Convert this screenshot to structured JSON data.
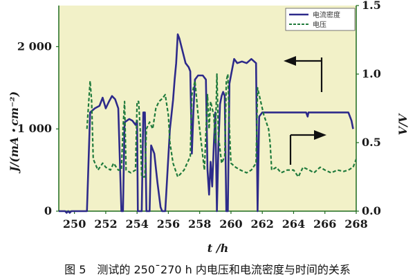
{
  "chart_data": {
    "type": "line",
    "caption": "图 5　测试的 250¯270 h 内电压和电流密度与时间的关系",
    "xlabel": "t /h",
    "ylabel_left": "J/(mA・cm⁻²)",
    "ylabel_right": "V/V",
    "xlim": [
      249,
      268
    ],
    "ylim_left": [
      0,
      2500
    ],
    "ylim_right": [
      0,
      1.5
    ],
    "x_ticks": [
      "250",
      "252",
      "254",
      "256",
      "258",
      "260",
      "262",
      "264",
      "266",
      "268"
    ],
    "y_left_ticks": [
      "0",
      "1 000",
      "2 000"
    ],
    "y_right_ticks": [
      "0.0",
      "0.5",
      "1.0",
      "1.5"
    ],
    "plot_background": "#f2f1c8",
    "grid": false,
    "legend_position": "top-right",
    "series": [
      {
        "name": "电流密度",
        "axis": "left",
        "color": "#2d2a8a",
        "style": "solid",
        "points": [
          [
            249.0,
            0
          ],
          [
            249.4,
            0
          ],
          [
            249.5,
            -20
          ],
          [
            249.6,
            0
          ],
          [
            249.7,
            -20
          ],
          [
            249.8,
            0
          ],
          [
            250.8,
            0
          ],
          [
            251.0,
            1200
          ],
          [
            251.3,
            1250
          ],
          [
            251.6,
            1280
          ],
          [
            251.8,
            1380
          ],
          [
            252.0,
            1250
          ],
          [
            252.2,
            1330
          ],
          [
            252.4,
            1400
          ],
          [
            252.6,
            1360
          ],
          [
            252.8,
            1250
          ],
          [
            253.0,
            0
          ],
          [
            253.1,
            0
          ],
          [
            253.2,
            1080
          ],
          [
            253.5,
            1120
          ],
          [
            253.7,
            1100
          ],
          [
            253.9,
            1050
          ],
          [
            254.0,
            1100
          ],
          [
            254.05,
            0
          ],
          [
            254.15,
            0
          ],
          [
            254.3,
            0
          ],
          [
            254.4,
            1200
          ],
          [
            254.5,
            1200
          ],
          [
            254.6,
            0
          ],
          [
            254.8,
            0
          ],
          [
            254.9,
            800
          ],
          [
            255.1,
            700
          ],
          [
            255.3,
            350
          ],
          [
            255.5,
            50
          ],
          [
            255.6,
            0
          ],
          [
            255.8,
            0
          ],
          [
            256.1,
            1000
          ],
          [
            256.3,
            1350
          ],
          [
            256.4,
            1600
          ],
          [
            256.5,
            1800
          ],
          [
            256.6,
            2150
          ],
          [
            256.7,
            2100
          ],
          [
            256.9,
            1950
          ],
          [
            257.1,
            1800
          ],
          [
            257.3,
            1750
          ],
          [
            257.4,
            1700
          ],
          [
            257.5,
            700
          ],
          [
            257.6,
            1200
          ],
          [
            257.7,
            1600
          ],
          [
            257.9,
            1650
          ],
          [
            258.2,
            1650
          ],
          [
            258.4,
            1600
          ],
          [
            258.5,
            500
          ],
          [
            258.6,
            200
          ],
          [
            258.7,
            600
          ],
          [
            258.8,
            300
          ],
          [
            258.9,
            800
          ],
          [
            259.0,
            1200
          ],
          [
            259.1,
            0
          ],
          [
            259.2,
            800
          ],
          [
            259.3,
            1300
          ],
          [
            259.4,
            1400
          ],
          [
            259.5,
            1450
          ],
          [
            259.6,
            1400
          ],
          [
            259.7,
            0
          ],
          [
            259.8,
            0
          ],
          [
            259.9,
            1550
          ],
          [
            260.0,
            1650
          ],
          [
            260.1,
            1750
          ],
          [
            260.2,
            1850
          ],
          [
            260.4,
            1800
          ],
          [
            260.7,
            1820
          ],
          [
            261.0,
            1800
          ],
          [
            261.3,
            1850
          ],
          [
            261.6,
            1800
          ],
          [
            261.7,
            0
          ],
          [
            261.8,
            1150
          ],
          [
            262.0,
            1200
          ],
          [
            262.5,
            1200
          ],
          [
            263.0,
            1200
          ],
          [
            263.5,
            1200
          ],
          [
            264.0,
            1200
          ],
          [
            264.5,
            1200
          ],
          [
            264.8,
            1200
          ],
          [
            264.9,
            1150
          ],
          [
            264.95,
            1200
          ],
          [
            265.5,
            1200
          ],
          [
            266.0,
            1200
          ],
          [
            266.5,
            1200
          ],
          [
            267.0,
            1200
          ],
          [
            267.5,
            1200
          ],
          [
            267.7,
            1100
          ],
          [
            267.8,
            1000
          ]
        ]
      },
      {
        "name": "电压",
        "axis": "right",
        "color": "#1f7a3c",
        "style": "dashed",
        "points": [
          [
            250.8,
            0.6
          ],
          [
            251.0,
            0.95
          ],
          [
            251.1,
            0.8
          ],
          [
            251.2,
            0.38
          ],
          [
            251.5,
            0.3
          ],
          [
            251.8,
            0.35
          ],
          [
            252.0,
            0.32
          ],
          [
            252.3,
            0.3
          ],
          [
            252.5,
            0.35
          ],
          [
            252.8,
            0.3
          ],
          [
            253.0,
            0.3
          ],
          [
            253.1,
            0.6
          ],
          [
            253.2,
            0.8
          ],
          [
            253.3,
            0.3
          ],
          [
            253.6,
            0.28
          ],
          [
            253.9,
            0.3
          ],
          [
            254.0,
            0.8
          ],
          [
            254.1,
            0.8
          ],
          [
            254.2,
            0.6
          ],
          [
            254.3,
            0.25
          ],
          [
            254.5,
            0.25
          ],
          [
            254.6,
            0.6
          ],
          [
            254.8,
            0.65
          ],
          [
            255.0,
            0.6
          ],
          [
            255.2,
            0.75
          ],
          [
            255.4,
            0.8
          ],
          [
            255.6,
            0.82
          ],
          [
            255.8,
            0.85
          ],
          [
            256.0,
            0.7
          ],
          [
            256.1,
            0.5
          ],
          [
            256.3,
            0.35
          ],
          [
            256.6,
            0.25
          ],
          [
            257.0,
            0.3
          ],
          [
            257.4,
            0.4
          ],
          [
            257.5,
            0.85
          ],
          [
            257.7,
            0.95
          ],
          [
            257.9,
            0.7
          ],
          [
            258.2,
            0.4
          ],
          [
            258.3,
            0.3
          ],
          [
            258.5,
            0.85
          ],
          [
            258.6,
            0.6
          ],
          [
            258.7,
            0.8
          ],
          [
            258.9,
            0.7
          ],
          [
            259.0,
            0.5
          ],
          [
            259.1,
            1.0
          ],
          [
            259.2,
            0.55
          ],
          [
            259.4,
            0.35
          ],
          [
            259.6,
            0.4
          ],
          [
            259.7,
            0.95
          ],
          [
            259.8,
            1.0
          ],
          [
            259.9,
            0.6
          ],
          [
            260.0,
            0.35
          ],
          [
            260.3,
            0.32
          ],
          [
            260.6,
            0.3
          ],
          [
            261.0,
            0.28
          ],
          [
            261.3,
            0.3
          ],
          [
            261.6,
            0.35
          ],
          [
            261.7,
            0.9
          ],
          [
            261.9,
            0.8
          ],
          [
            262.1,
            0.7
          ],
          [
            262.4,
            0.6
          ],
          [
            262.5,
            0.5
          ],
          [
            262.6,
            0.3
          ],
          [
            262.9,
            0.32
          ],
          [
            263.2,
            0.28
          ],
          [
            263.6,
            0.3
          ],
          [
            264.0,
            0.3
          ],
          [
            264.3,
            0.25
          ],
          [
            264.6,
            0.32
          ],
          [
            265.0,
            0.3
          ],
          [
            265.3,
            0.28
          ],
          [
            265.7,
            0.32
          ],
          [
            266.0,
            0.3
          ],
          [
            266.4,
            0.28
          ],
          [
            266.8,
            0.3
          ],
          [
            267.2,
            0.29
          ],
          [
            267.5,
            0.3
          ],
          [
            267.8,
            0.32
          ],
          [
            268.0,
            0.38
          ]
        ]
      }
    ],
    "annotations": [
      {
        "type": "arrow",
        "direction": "left",
        "points_to": "left-axis"
      },
      {
        "type": "arrow",
        "direction": "right",
        "points_to": "right-axis"
      }
    ]
  }
}
